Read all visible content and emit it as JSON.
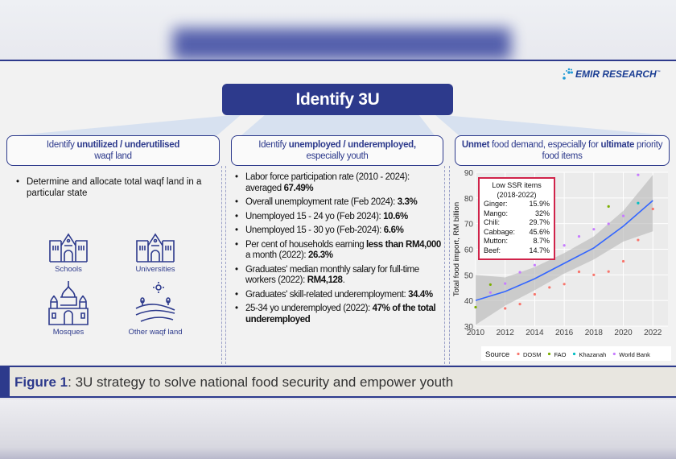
{
  "title": "Identify 3U",
  "logo": {
    "text": "EMIR RESEARCH",
    "tm": "™"
  },
  "columns": [
    {
      "heading_parts": [
        "Identify ",
        "unutilized / underutilised",
        "waqf land"
      ],
      "bullets": [
        "Determine and allocate total waqf land in a particular state"
      ],
      "icons": [
        {
          "label": "Schools",
          "icon": "school-building-icon"
        },
        {
          "label": "Universities",
          "icon": "university-building-icon"
        },
        {
          "label": "Mosques",
          "icon": "mosque-icon"
        },
        {
          "label": "Other waqf land",
          "icon": "farmland-icon"
        }
      ]
    },
    {
      "heading_parts": [
        "Identify ",
        "unemployed / underemployed,",
        "especially youth"
      ],
      "bullets": [
        {
          "text": "Labor force participation rate (2010 - 2024): averaged ",
          "bold": "67.49%"
        },
        {
          "text": "Overall unemployment rate (Feb 2024): ",
          "bold": "3.3%"
        },
        {
          "text": "Unemployed 15 - 24 yo (Feb 2024): ",
          "bold": "10.6%"
        },
        {
          "text": "Unemployed 15 - 30 yo (Feb-2024): ",
          "bold": "6.6%"
        },
        {
          "text": "Per cent of households earning ",
          "bold": "less than RM4,000",
          "text2": " a month (2022): ",
          "bold2": "26.3%"
        },
        {
          "text": "Graduates' median monthly salary for full-time workers (2022): ",
          "bold": "RM4,128",
          "text2": "."
        },
        {
          "text": "Graduates' skill-related underemployment: ",
          "bold": "34.4%"
        },
        {
          "text": "25-34 yo underemployed (2022): ",
          "bold": "47% of the total underemployed"
        }
      ]
    },
    {
      "heading_parts": [
        "Unmet",
        " food demand, especially for ",
        "ultimate",
        " priority food items"
      ]
    }
  ],
  "inset": {
    "title": "Low SSR items",
    "period": "(2018-2022)",
    "items": [
      [
        "Ginger:",
        "15.9%"
      ],
      [
        "Mango:",
        "32%"
      ],
      [
        "Chili:",
        "29.7%"
      ],
      [
        "Cabbage:",
        "45.6%"
      ],
      [
        "Mutton:",
        "8.7%"
      ],
      [
        "Beef:",
        "14.7%"
      ]
    ]
  },
  "chart_data": {
    "type": "scatter",
    "ylabel": "Total food import, RM billion",
    "xlabel": "",
    "xlim": [
      2010,
      2022.5
    ],
    "ylim": [
      30,
      90
    ],
    "xticks": [
      2010,
      2012,
      2014,
      2016,
      2018,
      2020,
      2022
    ],
    "yticks": [
      30,
      40,
      50,
      60,
      70,
      80,
      90
    ],
    "grid": true,
    "legend_title": "Source",
    "legend_position": "bottom",
    "series": [
      {
        "name": "DOSM",
        "color": "#f8766d",
        "x": [
          2012,
          2013,
          2014,
          2015,
          2016,
          2017,
          2018,
          2019,
          2020,
          2021,
          2022
        ],
        "y": [
          36.9,
          38.6,
          42.4,
          45.1,
          46.4,
          51.2,
          50,
          51.3,
          55.3,
          63.6,
          75.7
        ]
      },
      {
        "name": "FAO",
        "color": "#7cae00",
        "x": [
          2010,
          2011,
          2019
        ],
        "y": [
          37.4,
          46.2,
          76.7
        ]
      },
      {
        "name": "Khazanah",
        "color": "#00bfc4",
        "x": [
          2021
        ],
        "y": [
          78
        ]
      },
      {
        "name": "World Bank",
        "color": "#c77cff",
        "x": [
          2011,
          2012,
          2013,
          2014,
          2016,
          2017,
          2018,
          2019,
          2020,
          2021
        ],
        "y": [
          43.1,
          46.6,
          51,
          53.8,
          61.5,
          65,
          67.8,
          69.9,
          73,
          89
        ]
      }
    ],
    "smooth": {
      "color": "#3366ff",
      "x": [
        2010,
        2012,
        2014,
        2016,
        2018,
        2020,
        2022
      ],
      "y": [
        40,
        43.5,
        48.5,
        54.5,
        60.5,
        69,
        79
      ],
      "lower": [
        30.5,
        38,
        44,
        50.5,
        56,
        63,
        67
      ],
      "upper": [
        50,
        49,
        53,
        58.5,
        65,
        75,
        89
      ]
    }
  },
  "caption": {
    "figure": "Figure 1",
    "text": ": 3U strategy to solve national food security and empower youth"
  }
}
